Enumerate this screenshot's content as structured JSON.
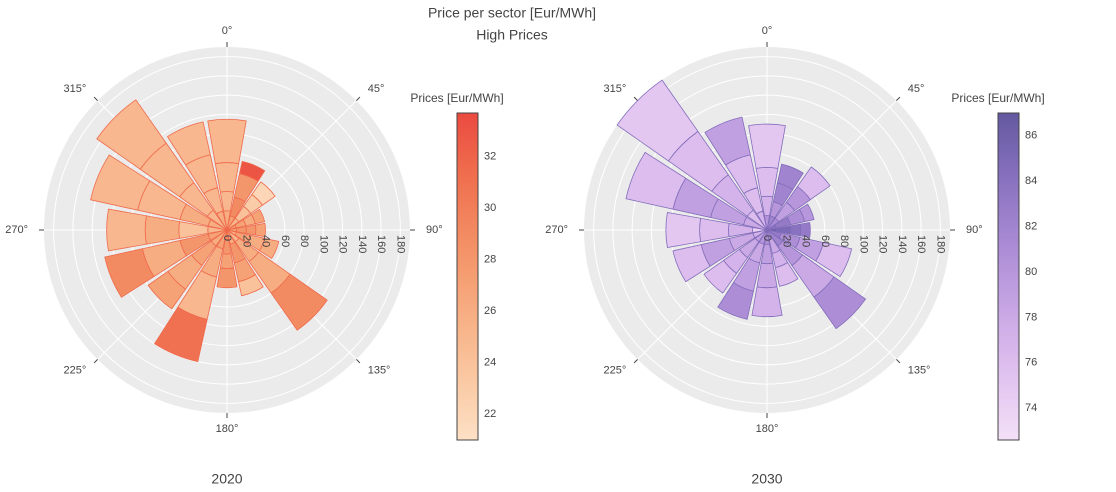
{
  "title": "Price per sector [Eur/MWh]",
  "subtitle": "High Prices",
  "chart_data": [
    {
      "type": "barpolar",
      "title": "2020",
      "theta": [
        0,
        22.5,
        45,
        67.5,
        90,
        112.5,
        135,
        157.5,
        180,
        202.5,
        225,
        247.5,
        270,
        292.5,
        315,
        337.5
      ],
      "segments": [
        {
          "values": [
            20,
            15,
            15,
            10,
            10,
            10,
            15,
            15,
            10,
            20,
            20,
            20,
            20,
            20,
            25,
            20
          ],
          "prices": [
            26,
            27,
            25,
            28,
            27,
            26,
            25,
            26,
            29,
            27,
            26,
            27,
            25,
            26,
            25,
            26
          ]
        },
        {
          "values": [
            20,
            20,
            15,
            10,
            10,
            15,
            25,
            20,
            15,
            30,
            25,
            30,
            30,
            30,
            35,
            25
          ],
          "prices": [
            25,
            29,
            24,
            27,
            28,
            27,
            26,
            28,
            28,
            26,
            27,
            28,
            24,
            26,
            25,
            25
          ]
        },
        {
          "values": [
            30,
            25,
            15,
            10,
            10,
            15,
            40,
            20,
            15,
            45,
            30,
            40,
            35,
            45,
            50,
            35
          ],
          "prices": [
            25,
            28,
            23,
            26,
            28,
            26,
            26,
            27,
            27,
            25,
            26,
            26,
            26,
            25,
            25,
            25
          ]
        },
        {
          "values": [
            45,
            13,
            16,
            10,
            10,
            15,
            47,
            15,
            20,
            45,
            25,
            40,
            40,
            50,
            55,
            35
          ],
          "prices": [
            25,
            33,
            22,
            27,
            27,
            26,
            29,
            24,
            28,
            31,
            27,
            29,
            25,
            25,
            25,
            25
          ]
        }
      ],
      "colorscale": [
        "#fde0c5",
        "#facba6",
        "#f8b58b",
        "#f59e72",
        "#f2855d",
        "#ef6a4c",
        "#eb4a40"
      ],
      "colorbar_title": "Prices [Eur/MWh]",
      "clim": [
        21,
        33.7
      ],
      "cticks": [
        22,
        24,
        26,
        28,
        30,
        32
      ],
      "rlim": [
        0,
        190
      ],
      "rticks": [
        0,
        20,
        40,
        60,
        80,
        100,
        120,
        140,
        160,
        180
      ],
      "angular_ticks": [
        {
          "value": 0,
          "label": "0°"
        },
        {
          "value": 45,
          "label": "45°"
        },
        {
          "value": 90,
          "label": "90°"
        },
        {
          "value": 135,
          "label": "135°"
        },
        {
          "value": 180,
          "label": "180°"
        },
        {
          "value": 225,
          "label": "225°"
        },
        {
          "value": 270,
          "label": "270°"
        },
        {
          "value": 315,
          "label": "315°"
        }
      ]
    },
    {
      "type": "barpolar",
      "title": "2030",
      "theta": [
        0,
        22.5,
        45,
        67.5,
        90,
        112.5,
        135,
        157.5,
        180,
        202.5,
        225,
        247.5,
        270,
        292.5,
        315,
        337.5
      ],
      "segments": [
        {
          "values": [
            15,
            15,
            15,
            10,
            10,
            15,
            20,
            10,
            15,
            15,
            15,
            15,
            15,
            25,
            25,
            20
          ],
          "prices": [
            80,
            82,
            81,
            84,
            86,
            83,
            82,
            80,
            81,
            80,
            79,
            77,
            74,
            78,
            76,
            77
          ]
        },
        {
          "values": [
            20,
            15,
            20,
            15,
            15,
            20,
            25,
            15,
            20,
            20,
            20,
            25,
            25,
            35,
            45,
            25
          ],
          "prices": [
            77,
            80,
            79,
            83,
            85,
            81,
            80,
            78,
            79,
            78,
            78,
            78,
            77,
            79,
            77,
            76
          ]
        },
        {
          "values": [
            30,
            20,
            20,
            15,
            10,
            25,
            40,
            15,
            25,
            30,
            20,
            30,
            30,
            40,
            55,
            35
          ],
          "prices": [
            76,
            82,
            80,
            81,
            84,
            79,
            78,
            77,
            78,
            79,
            77,
            79,
            76,
            79,
            76,
            76
          ]
        },
        {
          "values": [
            45,
            20,
            25,
            10,
            10,
            30,
            40,
            20,
            30,
            30,
            25,
            30,
            35,
            50,
            65,
            40
          ],
          "prices": [
            75,
            82,
            76,
            80,
            83,
            76,
            81,
            76,
            77,
            81,
            76,
            76,
            75,
            76,
            75,
            79
          ]
        }
      ],
      "colorscale": [
        "#f3e0f7",
        "#e4c7f1",
        "#d1afe8",
        "#b998dd",
        "#9f82ce",
        "#826dba",
        "#63589f"
      ],
      "colorbar_title": "Prices [Eur/MWh]",
      "clim": [
        72.6,
        87
      ],
      "cticks": [
        74,
        76,
        78,
        80,
        82,
        84,
        86
      ],
      "rlim": [
        0,
        190
      ],
      "rticks": [
        0,
        20,
        40,
        60,
        80,
        100,
        120,
        140,
        160,
        180
      ],
      "angular_ticks": [
        {
          "value": 0,
          "label": "0°"
        },
        {
          "value": 45,
          "label": "45°"
        },
        {
          "value": 90,
          "label": "90°"
        },
        {
          "value": 135,
          "label": "135°"
        },
        {
          "value": 180,
          "label": "180°"
        },
        {
          "value": 225,
          "label": "225°"
        },
        {
          "value": 270,
          "label": "270°"
        },
        {
          "value": 315,
          "label": "315°"
        }
      ]
    }
  ]
}
